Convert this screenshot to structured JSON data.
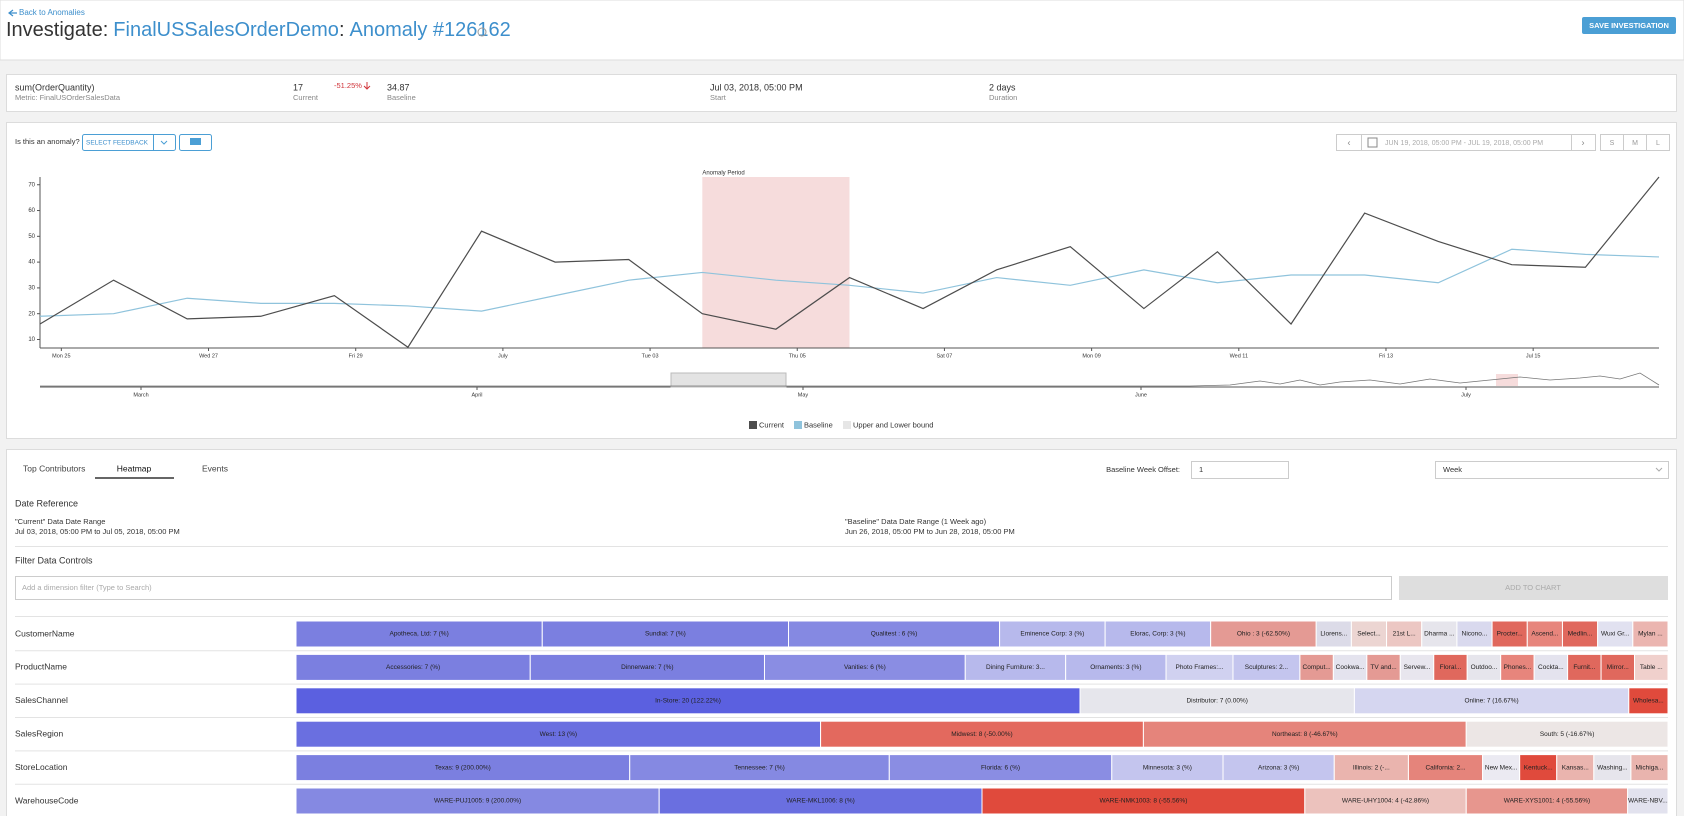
{
  "header": {
    "back_link": "Back to Anomalies",
    "title": [
      "Investigate:",
      "FinalUSSalesOrderDemo",
      ":",
      "Anomaly #126162"
    ],
    "save_button": "SAVE INVESTIGATION"
  },
  "summary": {
    "metric": "sum(OrderQuantity)",
    "metric_sub": "Metric: FinalUSOrderSalesData",
    "current": 17,
    "current_label": "Current",
    "change": "-51.25%",
    "baseline": 34.87,
    "baseline_label": "Baseline",
    "start": "Jul 03, 2018, 05:00 PM",
    "start_label": "Start",
    "duration": "2 days",
    "duration_label": "Duration"
  },
  "feedback": {
    "question": "Is this an anomaly?",
    "button": "SELECT FEEDBACK"
  },
  "date_range": "JUN 19, 2018, 05:00 PM - JUL 19, 2018, 05:00 PM",
  "sizes": [
    "S",
    "M",
    "L"
  ],
  "chart_data": {
    "type": "line",
    "annotation": "Anomaly Period",
    "anomaly_period": [
      8.71,
      10.71
    ],
    "x": [
      -0.29,
      0.71,
      1.71,
      2.71,
      3.71,
      4.71,
      5.71,
      6.71,
      7.71,
      8.71,
      9.71,
      10.71,
      11.71,
      12.71,
      13.71,
      14.71,
      15.71,
      16.71,
      17.71,
      18.71,
      19.71,
      20.71,
      21.71
    ],
    "xlim": [
      -0.29,
      21.71
    ],
    "xticks": [
      {
        "value": 0,
        "label": "Mon 25"
      },
      {
        "value": 2,
        "label": "Wed 27"
      },
      {
        "value": 4,
        "label": "Fri 29"
      },
      {
        "value": 6,
        "label": "July"
      },
      {
        "value": 8,
        "label": "Tue 03"
      },
      {
        "value": 10,
        "label": "Thu 05"
      },
      {
        "value": 12,
        "label": "Sat 07"
      },
      {
        "value": 14,
        "label": "Mon 09"
      },
      {
        "value": 16,
        "label": "Wed 11"
      },
      {
        "value": 18,
        "label": "Fri 13"
      },
      {
        "value": 20,
        "label": "Jul 15"
      }
    ],
    "ylim": [
      6.7,
      73
    ],
    "yticks": [
      10,
      20,
      30,
      40,
      50,
      60,
      70
    ],
    "series": [
      {
        "name": "Current",
        "color": "#4d4d4d",
        "values": [
          16,
          33,
          18,
          19,
          27,
          7,
          52,
          40,
          41,
          20,
          14,
          34,
          22,
          37,
          46,
          22,
          44,
          16,
          59,
          48,
          39,
          38,
          73
        ]
      },
      {
        "name": "Baseline",
        "color": "#8fc3dc",
        "values": [
          19,
          20,
          26,
          24,
          24,
          23,
          21,
          27,
          33,
          36,
          33,
          31,
          28,
          34,
          31,
          37,
          32,
          35,
          35,
          32,
          45,
          43,
          42
        ]
      }
    ],
    "bound_legend": {
      "name": "Upper and Lower bound",
      "color": "#e6e6e6"
    },
    "overview_labels": [
      "March",
      "April",
      "May",
      "June",
      "July"
    ]
  },
  "tabs": [
    "Top Contributors",
    "Heatmap",
    "Events"
  ],
  "active_tab": 1,
  "offset": {
    "label": "Baseline Week Offset:",
    "value": 1,
    "unit": "Week"
  },
  "date_reference": {
    "title": "Date Reference",
    "current_label": "\"Current\" Data Date Range",
    "current_range": "Jul 03, 2018, 05:00 PM to Jul 05, 2018, 05:00 PM",
    "baseline_label": "\"Baseline\" Data Date Range (1 Week ago)",
    "baseline_range": "Jun 26, 2018, 05:00 PM to Jun 28, 2018, 05:00 PM"
  },
  "filter": {
    "title": "Filter Data Controls",
    "placeholder": "Add a dimension filter (Type to Search)",
    "button": "ADD TO CHART"
  },
  "heatmap": {
    "rows": [
      {
        "dimension": "CustomerName",
        "cells": [
          {
            "label": "Apotheca, Ltd: 7 (%)",
            "value": 7,
            "color": "#7b7fe0"
          },
          {
            "label": "Sundial: 7 (%)",
            "value": 7,
            "color": "#7b7fe0"
          },
          {
            "label": "Qualitest : 6 (%)",
            "value": 6,
            "color": "#8589e2"
          },
          {
            "label": "Eminence Corp: 3 (%)",
            "value": 3,
            "color": "#b7b9ec"
          },
          {
            "label": "Elorac, Corp: 3 (%)",
            "value": 3,
            "color": "#b7b9ec"
          },
          {
            "label": "Ohio : 3 (-62.50%)",
            "value": 3,
            "color": "#e49a94"
          },
          {
            "label": "Llorens...",
            "value": 1,
            "color": "#dcdbe8"
          },
          {
            "label": "Select...",
            "value": 1,
            "color": "#ecd5d2"
          },
          {
            "label": "21st L...",
            "value": 1,
            "color": "#ecc7c3"
          },
          {
            "label": "Dharma ...",
            "value": 1,
            "color": "#e6e5ec"
          },
          {
            "label": "Nicono...",
            "value": 1,
            "color": "#d9d9ee"
          },
          {
            "label": "Procter...",
            "value": 1,
            "color": "#e0685d"
          },
          {
            "label": "Ascend...",
            "value": 1,
            "color": "#e7857c"
          },
          {
            "label": "Medlin...",
            "value": 1,
            "color": "#e0685d"
          },
          {
            "label": "Wuxi Gr...",
            "value": 1,
            "color": "#e1e1f0"
          },
          {
            "label": "Mylan ...",
            "value": 1,
            "color": "#ebb5b0"
          }
        ]
      },
      {
        "dimension": "ProductName",
        "cells": [
          {
            "label": "Accessories: 7 (%)",
            "value": 7,
            "color": "#7b7fe0"
          },
          {
            "label": "Dinnerware: 7 (%)",
            "value": 7,
            "color": "#7b7fe0"
          },
          {
            "label": "Vanities: 6 (%)",
            "value": 6,
            "color": "#8a8de3"
          },
          {
            "label": "Dining Furniture: 3...",
            "value": 3,
            "color": "#b7b9ec"
          },
          {
            "label": "Ornaments: 3 (%)",
            "value": 3,
            "color": "#b7b9ec"
          },
          {
            "label": "Photo Frames:...",
            "value": 2,
            "color": "#d0d1f0"
          },
          {
            "label": "Sculptures: 2...",
            "value": 2,
            "color": "#c4c5ee"
          },
          {
            "label": "Comput...",
            "value": 1,
            "color": "#e49a94"
          },
          {
            "label": "Cookwa...",
            "value": 1,
            "color": "#e4e3ee"
          },
          {
            "label": "TV and...",
            "value": 1,
            "color": "#e49a94"
          },
          {
            "label": "Servew...",
            "value": 1,
            "color": "#e8e6ee"
          },
          {
            "label": "Floral...",
            "value": 1,
            "color": "#e0685d"
          },
          {
            "label": "Outdoo...",
            "value": 1,
            "color": "#e6e5ec"
          },
          {
            "label": "Phones...",
            "value": 1,
            "color": "#e7857c"
          },
          {
            "label": "Cockta...",
            "value": 1,
            "color": "#e4e3ee"
          },
          {
            "label": "Furnit...",
            "value": 1,
            "color": "#e0685d"
          },
          {
            "label": "Mirror...",
            "value": 1,
            "color": "#e0685d"
          },
          {
            "label": "Table ...",
            "value": 1,
            "color": "#f0d0cc"
          }
        ]
      },
      {
        "dimension": "SalesChannel",
        "cells": [
          {
            "label": "In-Store: 20 (122.22%)",
            "value": 20,
            "color": "#5b60e0"
          },
          {
            "label": "Distributor: 7 (0.00%)",
            "value": 7,
            "color": "#e6e6ec"
          },
          {
            "label": "Online: 7 (16.67%)",
            "value": 7,
            "color": "#d5d6f0"
          },
          {
            "label": "Wholesa...",
            "value": 1,
            "color": "#e04a3c"
          }
        ]
      },
      {
        "dimension": "SalesRegion",
        "cells": [
          {
            "label": "West: 13 (%)",
            "value": 13,
            "color": "#6a6fe0"
          },
          {
            "label": "Midwest: 8 (-50.00%)",
            "value": 8,
            "color": "#e3695e"
          },
          {
            "label": "Northeast: 8 (-46.67%)",
            "value": 8,
            "color": "#e5847b"
          },
          {
            "label": "South: 5 (-16.67%)",
            "value": 5,
            "color": "#ece6e5"
          }
        ]
      },
      {
        "dimension": "StoreLocation",
        "cells": [
          {
            "label": "Texas: 9 (200.00%)",
            "value": 9,
            "color": "#7b7fe0"
          },
          {
            "label": "Tennessee: 7 (%)",
            "value": 7,
            "color": "#8589e2"
          },
          {
            "label": "Florida: 6 (%)",
            "value": 6,
            "color": "#8a8de3"
          },
          {
            "label": "Minnesota: 3 (%)",
            "value": 3,
            "color": "#c4c5ee"
          },
          {
            "label": "Arizona: 3 (%)",
            "value": 3,
            "color": "#c4c5ee"
          },
          {
            "label": "Illinois: 2 (-...",
            "value": 2,
            "color": "#eab4ae"
          },
          {
            "label": "California: 2...",
            "value": 2,
            "color": "#e5847b"
          },
          {
            "label": "New Mex...",
            "value": 1,
            "color": "#ebeaf2"
          },
          {
            "label": "Kentuck...",
            "value": 1,
            "color": "#e04a3c"
          },
          {
            "label": "Kansas...",
            "value": 1,
            "color": "#eab4ae"
          },
          {
            "label": "Washing...",
            "value": 1,
            "color": "#e6e5ec"
          },
          {
            "label": "Michiga...",
            "value": 1,
            "color": "#e9b4ae"
          }
        ]
      },
      {
        "dimension": "WarehouseCode",
        "cells": [
          {
            "label": "WARE-PUJ1005: 9 (200.00%)",
            "value": 9,
            "color": "#8589e2"
          },
          {
            "label": "WARE-MKL1006: 8 (%)",
            "value": 8,
            "color": "#6a6fe0"
          },
          {
            "label": "WARE-NMK1003: 8 (-55.56%)",
            "value": 8,
            "color": "#e04a3c"
          },
          {
            "label": "WARE-UHY1004: 4 (-42.86%)",
            "value": 4,
            "color": "#ecc2bd"
          },
          {
            "label": "WARE-XYS1001: 4 (-55.56%)",
            "value": 4,
            "color": "#e7968e"
          },
          {
            "label": "WARE-NBV...",
            "value": 1,
            "color": "#e2e2ee"
          }
        ]
      }
    ]
  }
}
